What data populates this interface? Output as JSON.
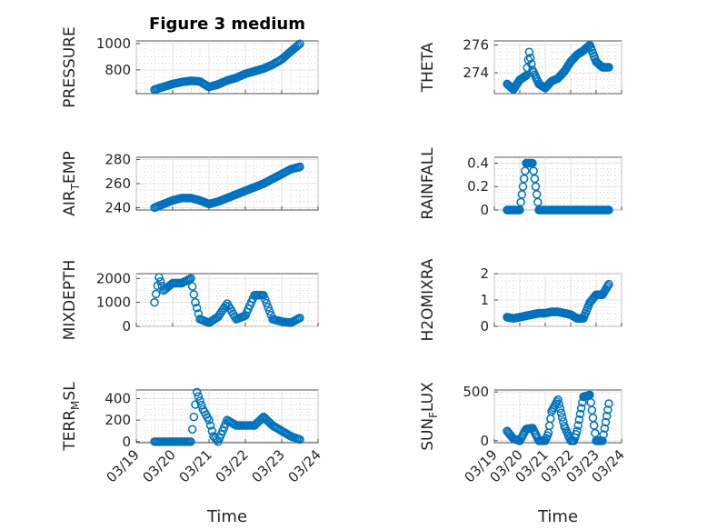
{
  "chart_data": [
    {
      "type": "scatter",
      "title": "Figure 3 medium",
      "ylabel": "PRESSURE",
      "ylim": [
        620,
        1020
      ],
      "yticks": [
        800,
        1000
      ],
      "x": [
        "2022-03-19T12:00",
        "2022-03-19T18:00",
        "2022-03-20T00:00",
        "2022-03-20T06:00",
        "2022-03-20T12:00",
        "2022-03-20T18:00",
        "2022-03-21T00:00",
        "2022-03-21T06:00",
        "2022-03-21T12:00",
        "2022-03-21T18:00",
        "2022-03-22T00:00",
        "2022-03-22T06:00",
        "2022-03-22T12:00",
        "2022-03-22T18:00",
        "2022-03-23T00:00",
        "2022-03-23T06:00",
        "2022-03-23T12:00"
      ],
      "y": [
        650,
        672,
        693,
        708,
        717,
        712,
        670,
        690,
        720,
        740,
        770,
        790,
        810,
        840,
        880,
        940,
        998
      ],
      "xticks": [],
      "show_xlabel": false
    },
    {
      "type": "scatter",
      "title": "",
      "ylabel": "THETA",
      "ylim": [
        272.5,
        276.3
      ],
      "yticks": [
        274,
        276
      ],
      "x": [
        "2022-03-19T12:00",
        "2022-03-19T18:00",
        "2022-03-20T00:00",
        "2022-03-20T06:00",
        "2022-03-20T09:00",
        "2022-03-20T12:00",
        "2022-03-20T18:00",
        "2022-03-21T00:00",
        "2022-03-21T06:00",
        "2022-03-21T12:00",
        "2022-03-21T18:00",
        "2022-03-22T00:00",
        "2022-03-22T06:00",
        "2022-03-22T12:00",
        "2022-03-22T18:00",
        "2022-03-23T00:00",
        "2022-03-23T06:00",
        "2022-03-23T12:00"
      ],
      "y": [
        273.2,
        272.8,
        273.5,
        273.8,
        275.5,
        274.2,
        273.2,
        272.9,
        273.4,
        273.6,
        274.1,
        274.8,
        275.3,
        275.6,
        276.0,
        274.8,
        274.4,
        274.4
      ],
      "xticks": [],
      "show_xlabel": false
    },
    {
      "type": "scatter",
      "title": "",
      "ylabel": "AIR_TEMP",
      "ylim": [
        238,
        282
      ],
      "yticks": [
        240,
        260,
        280
      ],
      "x": [
        "2022-03-19T12:00",
        "2022-03-19T18:00",
        "2022-03-20T00:00",
        "2022-03-20T06:00",
        "2022-03-20T12:00",
        "2022-03-20T18:00",
        "2022-03-21T00:00",
        "2022-03-21T06:00",
        "2022-03-21T12:00",
        "2022-03-21T18:00",
        "2022-03-22T00:00",
        "2022-03-22T06:00",
        "2022-03-22T12:00",
        "2022-03-22T18:00",
        "2022-03-23T00:00",
        "2022-03-23T06:00",
        "2022-03-23T12:00"
      ],
      "y": [
        240,
        243,
        246,
        248,
        248,
        246,
        243,
        245,
        248,
        251,
        254,
        257,
        260,
        264,
        268,
        272,
        274
      ],
      "xticks": [],
      "show_xlabel": false
    },
    {
      "type": "scatter",
      "title": "",
      "ylabel": "RAINFALL",
      "ylim": [
        0,
        0.45
      ],
      "yticks": [
        0,
        0.2,
        0.4
      ],
      "x": [
        "2022-03-19T12:00",
        "2022-03-19T18:00",
        "2022-03-20T00:00",
        "2022-03-20T03:00",
        "2022-03-20T06:00",
        "2022-03-20T09:00",
        "2022-03-20T12:00",
        "2022-03-20T15:00",
        "2022-03-20T18:00",
        "2022-03-21T00:00",
        "2022-03-21T12:00",
        "2022-03-22T00:00",
        "2022-03-22T12:00",
        "2022-03-23T00:00",
        "2022-03-23T12:00"
      ],
      "y": [
        0,
        0,
        0,
        0.2,
        0.4,
        0.4,
        0.4,
        0.2,
        0,
        0,
        0,
        0,
        0,
        0,
        0
      ],
      "xticks": [],
      "show_xlabel": false
    },
    {
      "type": "scatter",
      "title": "",
      "ylabel": "MIXDEPTH",
      "ylim": [
        0,
        2200
      ],
      "yticks": [
        0,
        1000,
        2000
      ],
      "x": [
        "2022-03-19T12:00",
        "2022-03-19T15:00",
        "2022-03-19T18:00",
        "2022-03-20T00:00",
        "2022-03-20T06:00",
        "2022-03-20T12:00",
        "2022-03-20T15:00",
        "2022-03-20T18:00",
        "2022-03-21T00:00",
        "2022-03-21T06:00",
        "2022-03-21T12:00",
        "2022-03-21T18:00",
        "2022-03-22T00:00",
        "2022-03-22T06:00",
        "2022-03-22T12:00",
        "2022-03-22T18:00",
        "2022-03-23T00:00",
        "2022-03-23T06:00",
        "2022-03-23T12:00"
      ],
      "y": [
        1000,
        2050,
        1500,
        1800,
        1800,
        2000,
        1000,
        300,
        150,
        400,
        950,
        300,
        450,
        1300,
        1300,
        300,
        200,
        150,
        350
      ],
      "xticks": [],
      "show_xlabel": false
    },
    {
      "type": "scatter",
      "title": "",
      "ylabel": "H2OMIXRA",
      "ylim": [
        0,
        2
      ],
      "yticks": [
        0,
        1,
        2
      ],
      "x": [
        "2022-03-19T12:00",
        "2022-03-19T18:00",
        "2022-03-20T00:00",
        "2022-03-20T06:00",
        "2022-03-20T12:00",
        "2022-03-20T18:00",
        "2022-03-21T00:00",
        "2022-03-21T06:00",
        "2022-03-21T12:00",
        "2022-03-21T18:00",
        "2022-03-22T00:00",
        "2022-03-22T06:00",
        "2022-03-22T12:00",
        "2022-03-22T18:00",
        "2022-03-23T00:00",
        "2022-03-23T06:00",
        "2022-03-23T12:00"
      ],
      "y": [
        0.35,
        0.3,
        0.35,
        0.4,
        0.45,
        0.5,
        0.5,
        0.55,
        0.55,
        0.5,
        0.45,
        0.3,
        0.3,
        0.9,
        1.2,
        1.2,
        1.6
      ],
      "xticks": [],
      "show_xlabel": false
    },
    {
      "type": "scatter",
      "title": "",
      "ylabel": "TERR_MSL",
      "ylim": [
        -10,
        480
      ],
      "yticks": [
        0,
        200,
        400
      ],
      "x": [
        "2022-03-19T12:00",
        "2022-03-19T18:00",
        "2022-03-20T00:00",
        "2022-03-20T06:00",
        "2022-03-20T12:00",
        "2022-03-20T16:00",
        "2022-03-20T20:00",
        "2022-03-21T00:00",
        "2022-03-21T03:00",
        "2022-03-21T06:00",
        "2022-03-21T12:00",
        "2022-03-21T18:00",
        "2022-03-22T00:00",
        "2022-03-22T06:00",
        "2022-03-22T12:00",
        "2022-03-22T18:00",
        "2022-03-23T00:00",
        "2022-03-23T06:00",
        "2022-03-23T12:00"
      ],
      "y": [
        0,
        0,
        0,
        0,
        0,
        460,
        300,
        200,
        50,
        0,
        200,
        150,
        150,
        150,
        230,
        150,
        100,
        50,
        20
      ],
      "xticks": [
        "03/19",
        "03/20",
        "03/21",
        "03/22",
        "03/23",
        "03/24"
      ],
      "xlabel": "Time",
      "show_xlabel": true
    },
    {
      "type": "scatter",
      "title": "",
      "ylabel": "SUN_FLUX",
      "ylim": [
        -20,
        520
      ],
      "yticks": [
        0,
        500
      ],
      "x": [
        "2022-03-19T12:00",
        "2022-03-19T18:00",
        "2022-03-20T00:00",
        "2022-03-20T06:00",
        "2022-03-20T12:00",
        "2022-03-20T18:00",
        "2022-03-21T00:00",
        "2022-03-21T03:00",
        "2022-03-21T06:00",
        "2022-03-21T12:00",
        "2022-03-21T18:00",
        "2022-03-22T00:00",
        "2022-03-22T03:00",
        "2022-03-22T06:00",
        "2022-03-22T12:00",
        "2022-03-22T18:00",
        "2022-03-23T00:00",
        "2022-03-23T06:00",
        "2022-03-23T12:00"
      ],
      "y": [
        100,
        20,
        0,
        120,
        130,
        0,
        0,
        80,
        300,
        420,
        150,
        0,
        0,
        100,
        450,
        470,
        0,
        0,
        380
      ],
      "xticks": [
        "03/19",
        "03/20",
        "03/21",
        "03/22",
        "03/23",
        "03/24"
      ],
      "xlabel": "Time",
      "show_xlabel": true
    }
  ]
}
